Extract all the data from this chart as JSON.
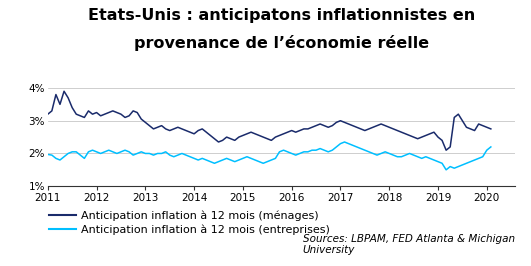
{
  "title_line1": "Etats-Unis : anticipatons inflationnistes en",
  "title_line2": "provenance de l’économie réelle",
  "ylim": [
    1.0,
    4.25
  ],
  "yticks": [
    1.0,
    2.0,
    3.0,
    4.0
  ],
  "ytick_labels": [
    "1%",
    "2%",
    "3%",
    "4%"
  ],
  "xlim_start": 2011.0,
  "xlim_end": 2020.58,
  "xticks": [
    2011,
    2012,
    2013,
    2014,
    2015,
    2016,
    2017,
    2018,
    2019,
    2020
  ],
  "color_menages": "#1a2b6b",
  "color_entreprises": "#00bfff",
  "legend_label_menages": "Anticipation inflation à 12 mois (ménages)",
  "legend_label_entreprises": "Anticipation inflation à 12 mois (entreprises)",
  "source_text": "Sources: LBPAM, FED Atlanta & Michigan\nUniversity",
  "background_color": "#ffffff",
  "title_fontsize": 11.5,
  "legend_fontsize": 8,
  "source_fontsize": 7.5,
  "menages": [
    3.2,
    3.3,
    3.8,
    3.5,
    3.9,
    3.7,
    3.4,
    3.2,
    3.15,
    3.1,
    3.3,
    3.2,
    3.25,
    3.15,
    3.2,
    3.25,
    3.3,
    3.25,
    3.2,
    3.1,
    3.15,
    3.3,
    3.25,
    3.05,
    2.95,
    2.85,
    2.75,
    2.8,
    2.85,
    2.75,
    2.7,
    2.75,
    2.8,
    2.75,
    2.7,
    2.65,
    2.6,
    2.7,
    2.75,
    2.65,
    2.55,
    2.45,
    2.35,
    2.4,
    2.5,
    2.45,
    2.4,
    2.5,
    2.55,
    2.6,
    2.65,
    2.6,
    2.55,
    2.5,
    2.45,
    2.4,
    2.5,
    2.55,
    2.6,
    2.65,
    2.7,
    2.65,
    2.7,
    2.75,
    2.75,
    2.8,
    2.85,
    2.9,
    2.85,
    2.8,
    2.85,
    2.95,
    3.0,
    2.95,
    2.9,
    2.85,
    2.8,
    2.75,
    2.7,
    2.75,
    2.8,
    2.85,
    2.9,
    2.85,
    2.8,
    2.75,
    2.7,
    2.65,
    2.6,
    2.55,
    2.5,
    2.45,
    2.5,
    2.55,
    2.6,
    2.65,
    2.5,
    2.4,
    2.1,
    2.2,
    3.1,
    3.2,
    3.0,
    2.8,
    2.75,
    2.7,
    2.9,
    2.85,
    2.8,
    2.75
  ],
  "entreprises": [
    1.97,
    1.95,
    1.85,
    1.8,
    1.9,
    2.0,
    2.05,
    2.05,
    1.95,
    1.85,
    2.05,
    2.1,
    2.05,
    2.0,
    2.05,
    2.1,
    2.05,
    2.0,
    2.05,
    2.1,
    2.05,
    1.95,
    2.0,
    2.05,
    2.0,
    2.0,
    1.95,
    2.0,
    2.0,
    2.05,
    1.95,
    1.9,
    1.95,
    2.0,
    1.95,
    1.9,
    1.85,
    1.8,
    1.85,
    1.8,
    1.75,
    1.7,
    1.75,
    1.8,
    1.85,
    1.8,
    1.75,
    1.8,
    1.85,
    1.9,
    1.85,
    1.8,
    1.75,
    1.7,
    1.75,
    1.8,
    1.85,
    2.05,
    2.1,
    2.05,
    2.0,
    1.95,
    2.0,
    2.05,
    2.05,
    2.1,
    2.1,
    2.15,
    2.1,
    2.05,
    2.1,
    2.2,
    2.3,
    2.35,
    2.3,
    2.25,
    2.2,
    2.15,
    2.1,
    2.05,
    2.0,
    1.95,
    2.0,
    2.05,
    2.0,
    1.95,
    1.9,
    1.9,
    1.95,
    2.0,
    1.95,
    1.9,
    1.85,
    1.9,
    1.85,
    1.8,
    1.75,
    1.7,
    1.5,
    1.6,
    1.55,
    1.6,
    1.65,
    1.7,
    1.75,
    1.8,
    1.85,
    1.9,
    2.1,
    2.2
  ]
}
